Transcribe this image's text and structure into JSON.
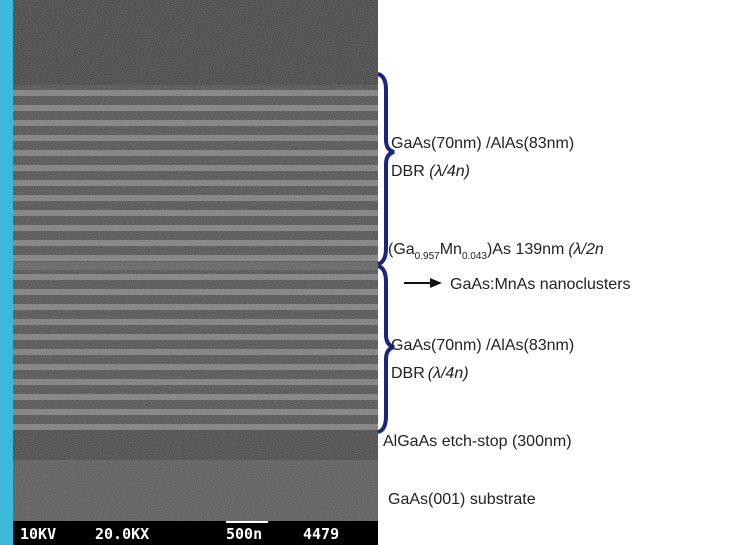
{
  "labels": {
    "top_dbr": {
      "layers": "GaAs(70nm) /AlAs(83nm)",
      "prefix": "DBR ",
      "period": "(λ/4n)"
    },
    "cavity": {
      "open": "(Ga",
      "sub1": "0.957",
      "mid": "Mn",
      "sub2": "0.043",
      "rest": ")As 139nm",
      "period": "(λ/2n"
    },
    "nanoclusters": "GaAs:MnAs nanoclusters",
    "bottom_dbr": {
      "layers": "GaAs(70nm) /AlAs(83nm)",
      "prefix": "DBR",
      "period": "(λ/4n)"
    },
    "etch_stop": "AlGaAs etch-stop (300nm)",
    "substrate": "GaAs(001) substrate"
  },
  "info_bar": {
    "voltage": "10KV",
    "magnification": "20.0KX",
    "scale": "500n",
    "id": "4479"
  }
}
